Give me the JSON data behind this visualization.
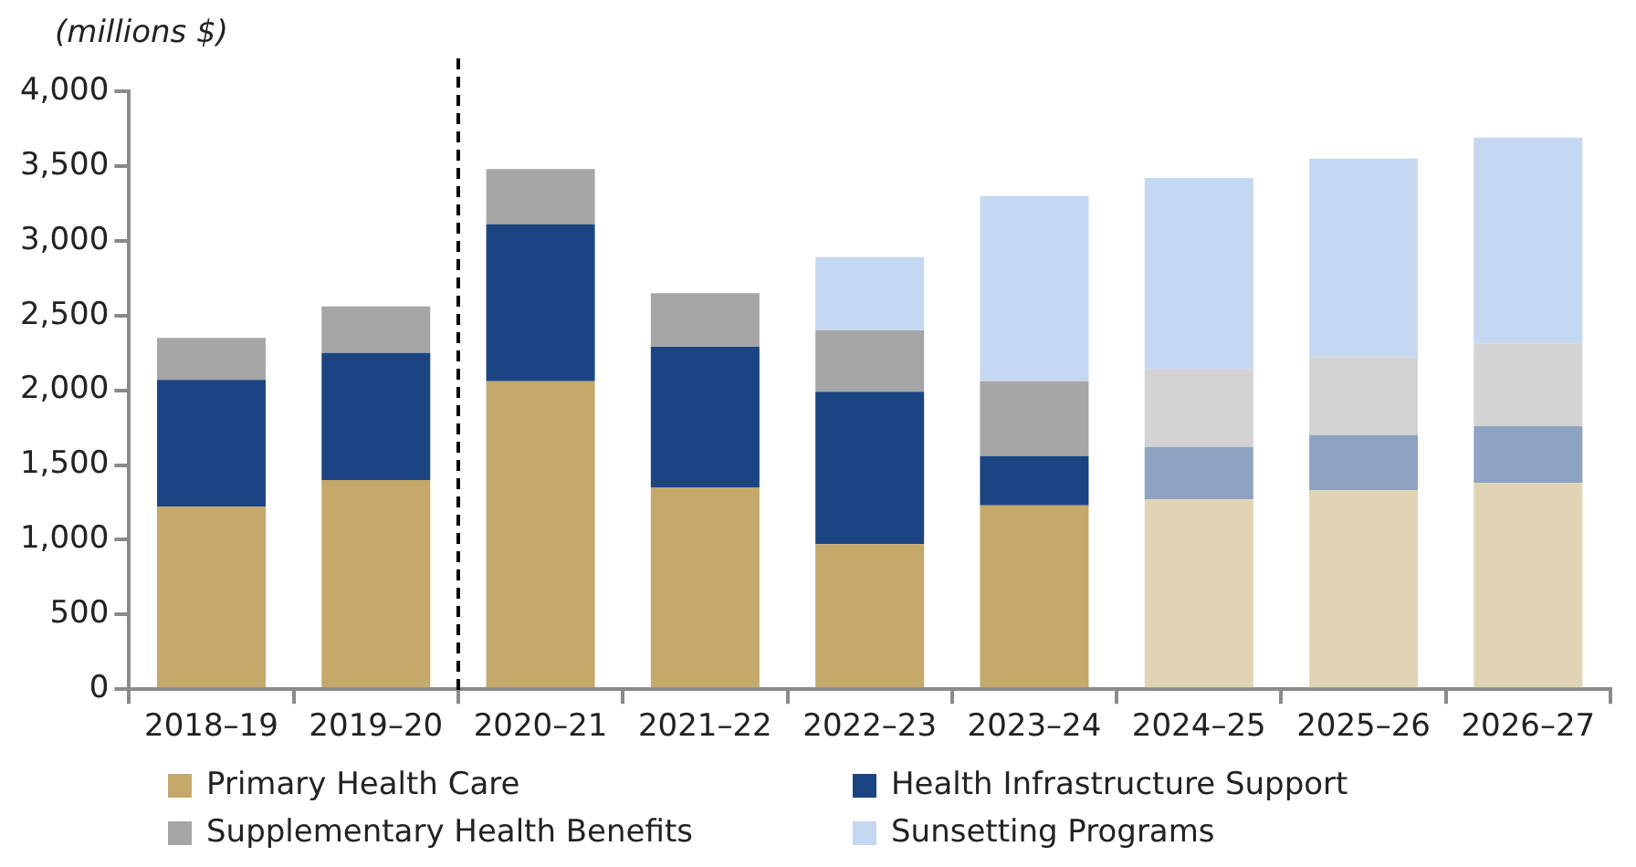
{
  "chart_data": {
    "type": "bar",
    "stacked": true,
    "ylabel": "(millions $)",
    "categories": [
      "2018–19",
      "2019–20",
      "2020–21",
      "2021–22",
      "2022–23",
      "2023–24",
      "2024–25",
      "2025–26",
      "2026–27"
    ],
    "series": [
      {
        "name": "Primary Health Care",
        "color": "#c4a96b",
        "colors": [
          "#c4a96b",
          "#c4a96b",
          "#c4a96b",
          "#c4a96b",
          "#c4a96b",
          "#c4a96b",
          "#e1d4b4",
          "#e1d4b4",
          "#e1d4b4"
        ],
        "values": [
          1220,
          1400,
          2060,
          1350,
          970,
          1230,
          1270,
          1330,
          1380
        ]
      },
      {
        "name": "Health Infrastructure Support",
        "color": "#1c4482",
        "colors": [
          "#1c4482",
          "#1c4482",
          "#1c4482",
          "#1c4482",
          "#1c4482",
          "#1c4482",
          "#8ea3c1",
          "#8ea3c1",
          "#8ea3c1"
        ],
        "values": [
          850,
          850,
          1050,
          940,
          1020,
          330,
          350,
          370,
          380
        ]
      },
      {
        "name": "Supplementary Health Benefits",
        "color": "#a6a6a6",
        "colors": [
          "#a6a6a6",
          "#a6a6a6",
          "#a6a6a6",
          "#a6a6a6",
          "#a6a6a6",
          "#a6a6a6",
          "#d3d3d3",
          "#d3d3d3",
          "#d3d3d3"
        ],
        "values": [
          280,
          310,
          370,
          360,
          410,
          500,
          520,
          520,
          550
        ]
      },
      {
        "name": "Sunsetting Programs",
        "color": "#c5d8f1",
        "values": [
          null,
          null,
          null,
          null,
          490,
          1240,
          1280,
          1330,
          1380
        ]
      }
    ],
    "ylim": [
      0,
      4000
    ],
    "yticks": [
      0,
      500,
      {
        "value": 1000,
        "label": "1,000"
      },
      {
        "value": 1500,
        "label": "1,500"
      },
      {
        "value": 2000,
        "label": "2,000"
      },
      {
        "value": 2500,
        "label": "2,500"
      },
      {
        "value": 3000,
        "label": "3,000"
      },
      {
        "value": 3500,
        "label": "3,500"
      },
      {
        "value": 4000,
        "label": "4,000"
      }
    ],
    "grid": false,
    "legend": "bottom"
  }
}
